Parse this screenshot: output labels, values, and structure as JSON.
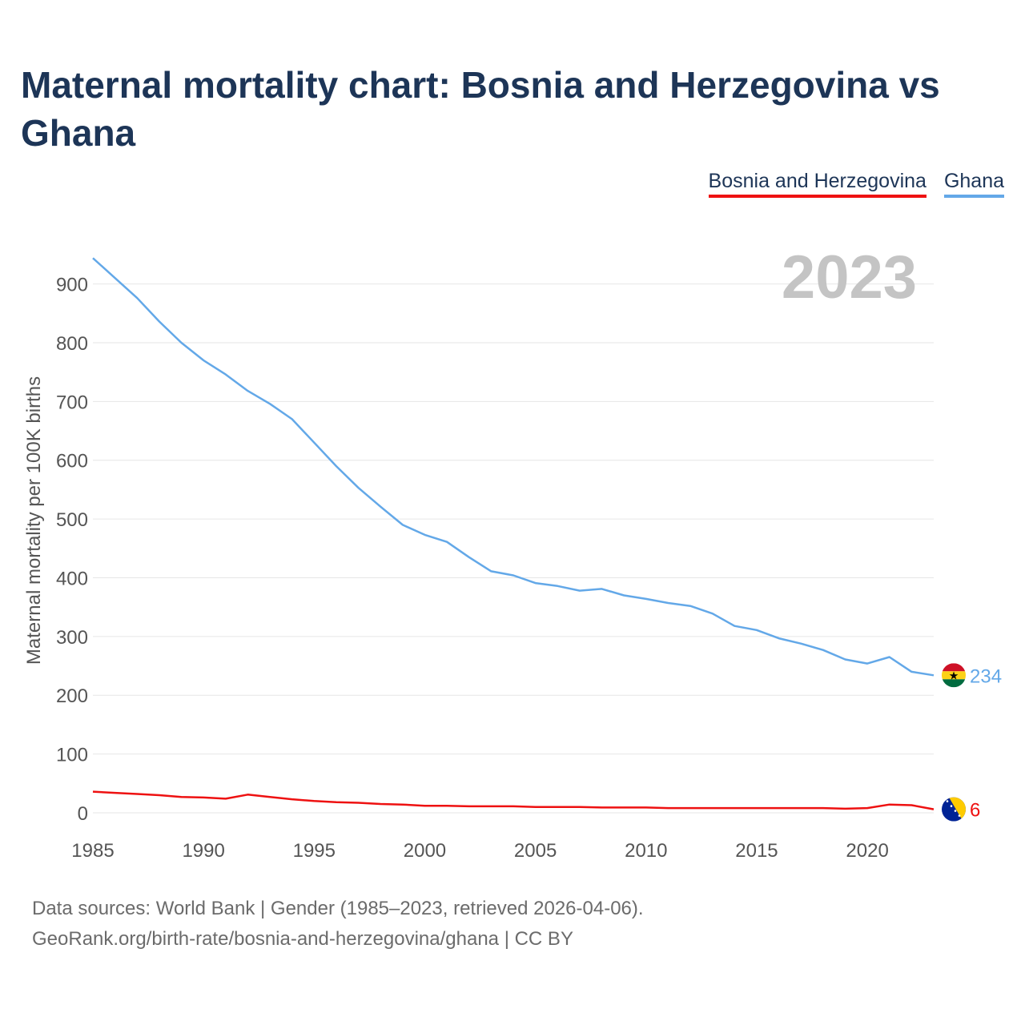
{
  "title": "Maternal mortality chart: Bosnia and Herzegovina vs Ghana",
  "footer": {
    "source": "Data sources: World Bank | Gender (1985–2023, retrieved 2026-04-06).",
    "credit": "GeoRank.org/birth-rate/bosnia-and-herzegovina/ghana | CC BY"
  },
  "chart_data": {
    "type": "line",
    "title": "Maternal mortality chart: Bosnia and Herzegovina vs Ghana",
    "xlabel": "",
    "ylabel": "Maternal mortality per 100K births",
    "year_label": "2023",
    "xlim": [
      1985,
      2023
    ],
    "ylim": [
      0,
      960
    ],
    "grid": true,
    "legend_position": "top-right",
    "xticks": [
      1985,
      1990,
      1995,
      2000,
      2005,
      2010,
      2015,
      2020
    ],
    "yticks": [
      0,
      100,
      200,
      300,
      400,
      500,
      600,
      700,
      800,
      900
    ],
    "x": [
      1985,
      1986,
      1987,
      1988,
      1989,
      1990,
      1991,
      1992,
      1993,
      1994,
      1995,
      1996,
      1997,
      1998,
      1999,
      2000,
      2001,
      2002,
      2003,
      2004,
      2005,
      2006,
      2007,
      2008,
      2009,
      2010,
      2011,
      2012,
      2013,
      2014,
      2015,
      2016,
      2017,
      2018,
      2019,
      2020,
      2021,
      2022,
      2023
    ],
    "series": [
      {
        "name": "Bosnia and Herzegovina",
        "color": "#ee1111",
        "end_label": "6",
        "values": [
          36,
          34,
          32,
          30,
          27,
          26,
          24,
          31,
          27,
          23,
          20,
          18,
          17,
          15,
          14,
          12,
          12,
          11,
          11,
          11,
          10,
          10,
          10,
          9,
          9,
          9,
          8,
          8,
          8,
          8,
          8,
          8,
          8,
          8,
          7,
          8,
          14,
          13,
          6
        ]
      },
      {
        "name": "Ghana",
        "color": "#63a8e8",
        "end_label": "234",
        "values": [
          944,
          910,
          876,
          836,
          800,
          770,
          746,
          718,
          696,
          670,
          630,
          590,
          553,
          521,
          490,
          473,
          461,
          435,
          411,
          404,
          391,
          386,
          378,
          381,
          370,
          364,
          357,
          352,
          339,
          318,
          311,
          297,
          288,
          277,
          261,
          254,
          265,
          240,
          234
        ]
      }
    ]
  }
}
